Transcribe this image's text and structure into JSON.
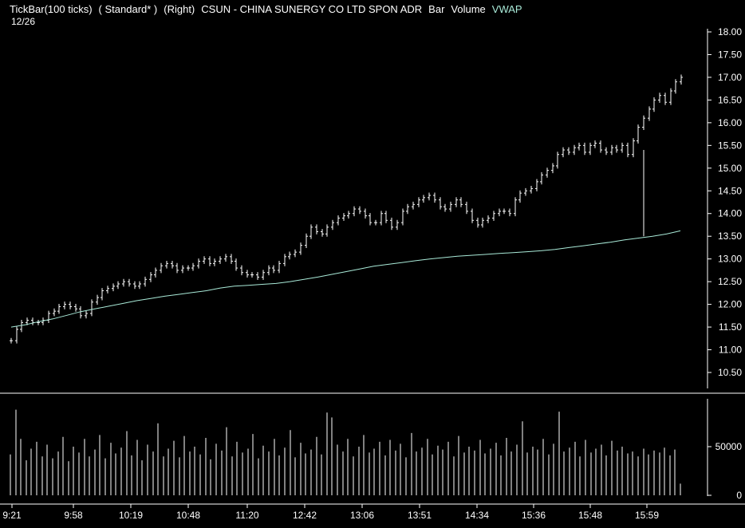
{
  "header": {
    "interval": "TickBar(100 ticks)",
    "session": "( Standard* )",
    "axis_side": "(Right)",
    "symbol": "CSUN - CHINA SUNERGY CO LTD SPON ADR",
    "style": "Bar",
    "volume_label": "Volume",
    "vwap_label": "VWAP",
    "date": "12/26"
  },
  "colors": {
    "background": "#000000",
    "price_bars": "#ffffff",
    "volume_bars": "#ffffff",
    "vwap": "#a9ead8",
    "axis": "#ffffff"
  },
  "chart_data": [
    {
      "type": "line",
      "title": "CSUN - CHINA SUNERGY CO LTD SPON ADR",
      "ylim": [
        10.2,
        18.1
      ],
      "y_ticks": [
        "18.00",
        "17.50",
        "17.00",
        "16.50",
        "16.00",
        "15.50",
        "15.00",
        "14.50",
        "14.00",
        "13.50",
        "13.00",
        "12.50",
        "12.00",
        "11.50",
        "11.00",
        "10.50"
      ],
      "x_ticks": [
        "9:21",
        "9:58",
        "10:19",
        "10:48",
        "11:20",
        "12:42",
        "13:06",
        "13:51",
        "14:34",
        "15:36",
        "15:48",
        "15:59"
      ],
      "series": [
        {
          "name": "Bar",
          "values": [
            11.2,
            11.45,
            11.6,
            11.65,
            11.6,
            11.6,
            11.65,
            11.8,
            11.85,
            11.95,
            12.0,
            11.95,
            11.9,
            11.75,
            11.8,
            12.05,
            12.15,
            12.3,
            12.35,
            12.4,
            12.45,
            12.5,
            12.45,
            12.4,
            12.45,
            12.55,
            12.65,
            12.75,
            12.85,
            12.9,
            12.85,
            12.75,
            12.8,
            12.8,
            12.85,
            12.95,
            13.0,
            12.9,
            12.95,
            13.0,
            13.05,
            12.95,
            12.8,
            12.7,
            12.65,
            12.65,
            12.6,
            12.7,
            12.8,
            12.75,
            12.9,
            13.05,
            13.1,
            13.15,
            13.3,
            13.5,
            13.7,
            13.6,
            13.55,
            13.7,
            13.8,
            13.9,
            13.95,
            14.0,
            14.1,
            14.05,
            13.95,
            13.8,
            13.8,
            14.0,
            13.85,
            13.7,
            13.8,
            14.05,
            14.15,
            14.2,
            14.3,
            14.35,
            14.4,
            14.3,
            14.15,
            14.1,
            14.2,
            14.3,
            14.2,
            14.05,
            13.85,
            13.75,
            13.85,
            13.9,
            14.0,
            14.05,
            14.05,
            14.0,
            14.3,
            14.45,
            14.5,
            14.55,
            14.7,
            14.85,
            14.95,
            15.05,
            15.3,
            15.4,
            15.35,
            15.45,
            15.5,
            15.35,
            15.5,
            15.55,
            15.4,
            15.35,
            15.45,
            15.4,
            15.5,
            15.3,
            15.6,
            15.9,
            16.1,
            16.3,
            16.5,
            16.6,
            16.45,
            16.7,
            16.9,
            17.0
          ]
        },
        {
          "name": "VWAP",
          "values": [
            11.5,
            11.55,
            11.62,
            11.68,
            11.76,
            11.84,
            11.9,
            11.96,
            12.02,
            12.08,
            12.13,
            12.18,
            12.22,
            12.26,
            12.3,
            12.36,
            12.4,
            12.42,
            12.44,
            12.46,
            12.5,
            12.55,
            12.6,
            12.66,
            12.72,
            12.78,
            12.84,
            12.88,
            12.92,
            12.96,
            13.0,
            13.03,
            13.06,
            13.08,
            13.1,
            13.12,
            13.14,
            13.16,
            13.18,
            13.21,
            13.25,
            13.29,
            13.33,
            13.37,
            13.42,
            13.46,
            13.5,
            13.55,
            13.62
          ]
        }
      ]
    },
    {
      "type": "bar",
      "title": "",
      "ylim": [
        0,
        95000
      ],
      "y_ticks": [
        "50000",
        "0"
      ],
      "series": [
        {
          "name": "Volume",
          "values": [
            42000,
            88000,
            58000,
            36000,
            48000,
            55000,
            40000,
            52000,
            38000,
            45000,
            60000,
            35000,
            50000,
            44000,
            58000,
            40000,
            47000,
            62000,
            38000,
            54000,
            43000,
            49000,
            66000,
            41000,
            57000,
            36000,
            52000,
            45000,
            74000,
            40000,
            48000,
            56000,
            39000,
            61000,
            45000,
            50000,
            42000,
            59000,
            37000,
            53000,
            46000,
            70000,
            40000,
            55000,
            44000,
            48000,
            63000,
            38000,
            51000,
            45000,
            58000,
            41000,
            49000,
            67000,
            39000,
            54000,
            43000,
            47000,
            60000,
            42000,
            85000,
            80000,
            52000,
            45000,
            58000,
            40000,
            50000,
            62000,
            44000,
            48000,
            55000,
            41000,
            57000,
            46000,
            53000,
            39000,
            64000,
            45000,
            49000,
            58000,
            42000,
            51000,
            47000,
            55000,
            40000,
            61000,
            44000,
            50000,
            46000,
            57000,
            43000,
            48000,
            54000,
            41000,
            59000,
            45000,
            52000,
            76000,
            44000,
            50000,
            47000,
            58000,
            42000,
            53000,
            86000,
            45000,
            49000,
            55000,
            40000,
            57000,
            44000,
            48000,
            52000,
            41000,
            56000,
            46000,
            50000,
            43000,
            45000,
            40000,
            48000,
            42000,
            46000,
            44000,
            49000,
            41000,
            47000,
            12000
          ]
        }
      ]
    }
  ]
}
